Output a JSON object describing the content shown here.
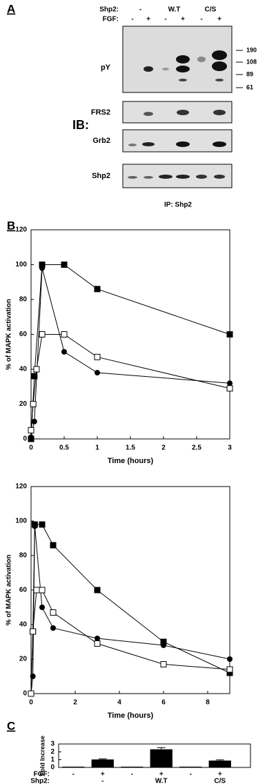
{
  "panel_labels": [
    "A",
    "B",
    "C"
  ],
  "panel_a": {
    "shp2_label": "Shp2:",
    "shp2_groups": [
      "-",
      "W.T",
      "C/S"
    ],
    "fgf_label": "FGF:",
    "fgf": [
      "-",
      "+",
      "-",
      "+",
      "-",
      "+"
    ],
    "ib_label": "IB:",
    "blots": [
      "pY",
      "FRS2",
      "Grb2",
      "Shp2"
    ],
    "mw_markers": [
      190,
      108,
      89,
      61
    ],
    "ip_label": "IP: Shp2"
  },
  "chart_data": [
    {
      "type": "line",
      "xlabel": "Time (hours)",
      "ylabel": "% of MAPK activation",
      "xlim": [
        0,
        3
      ],
      "xticks": [
        0,
        0.5,
        1,
        1.5,
        2,
        2.5,
        3
      ],
      "ylim": [
        0,
        120
      ],
      "yticks": [
        0,
        20,
        40,
        60,
        80,
        100,
        120
      ],
      "series": [
        {
          "marker": "square",
          "color": "#000",
          "x": [
            0,
            0.05,
            0.167,
            0.5,
            1,
            3
          ],
          "values": [
            0,
            36,
            100,
            100,
            86,
            60
          ]
        },
        {
          "marker": "circle",
          "color": "#000",
          "x": [
            0,
            0.05,
            0.167,
            0.5,
            1,
            3
          ],
          "values": [
            1,
            10,
            98,
            50,
            38,
            32
          ]
        },
        {
          "marker": "open-square",
          "color": "#000",
          "x": [
            0,
            0.033,
            0.083,
            0.167,
            0.5,
            1,
            3
          ],
          "values": [
            5,
            20,
            40,
            60,
            60,
            47,
            29
          ]
        }
      ]
    },
    {
      "type": "line",
      "xlabel": "Time (hours)",
      "ylabel": "% of MAPK activation",
      "xlim": [
        0,
        9
      ],
      "xticks": [
        0,
        2,
        4,
        6,
        8
      ],
      "ylim": [
        0,
        120
      ],
      "yticks": [
        0,
        20,
        40,
        60,
        80,
        100,
        120
      ],
      "series": [
        {
          "marker": "square",
          "color": "#000",
          "x": [
            0,
            0.083,
            0.167,
            0.5,
            1,
            3,
            6,
            9
          ],
          "values": [
            0,
            36,
            98,
            98,
            86,
            60,
            30,
            12
          ]
        },
        {
          "marker": "circle",
          "color": "#000",
          "x": [
            0,
            0.083,
            0.167,
            0.5,
            1,
            3,
            6,
            9
          ],
          "values": [
            0,
            10,
            97,
            50,
            38,
            32,
            28,
            20
          ]
        },
        {
          "marker": "open-square",
          "color": "#000",
          "x": [
            0,
            0.083,
            0.25,
            0.5,
            1,
            3,
            6,
            9
          ],
          "values": [
            0,
            36,
            60,
            60,
            47,
            29,
            17,
            14
          ]
        }
      ]
    },
    {
      "type": "bar",
      "ylabel": "Fold Increase",
      "ylim": [
        0,
        3
      ],
      "yticks": [
        0,
        1,
        2,
        3
      ],
      "fgf_label": "FGF:",
      "categories": [
        "-",
        "+",
        "-",
        "+",
        "-",
        "+"
      ],
      "shp2_label": "Shp2:",
      "groups": [
        "-",
        "W.T",
        "C/S"
      ],
      "values": [
        0.1,
        1.02,
        0.1,
        2.32,
        0.1,
        0.88
      ],
      "errors": [
        0,
        0.07,
        0,
        0.22,
        0,
        0.1
      ],
      "color": "#000"
    }
  ]
}
